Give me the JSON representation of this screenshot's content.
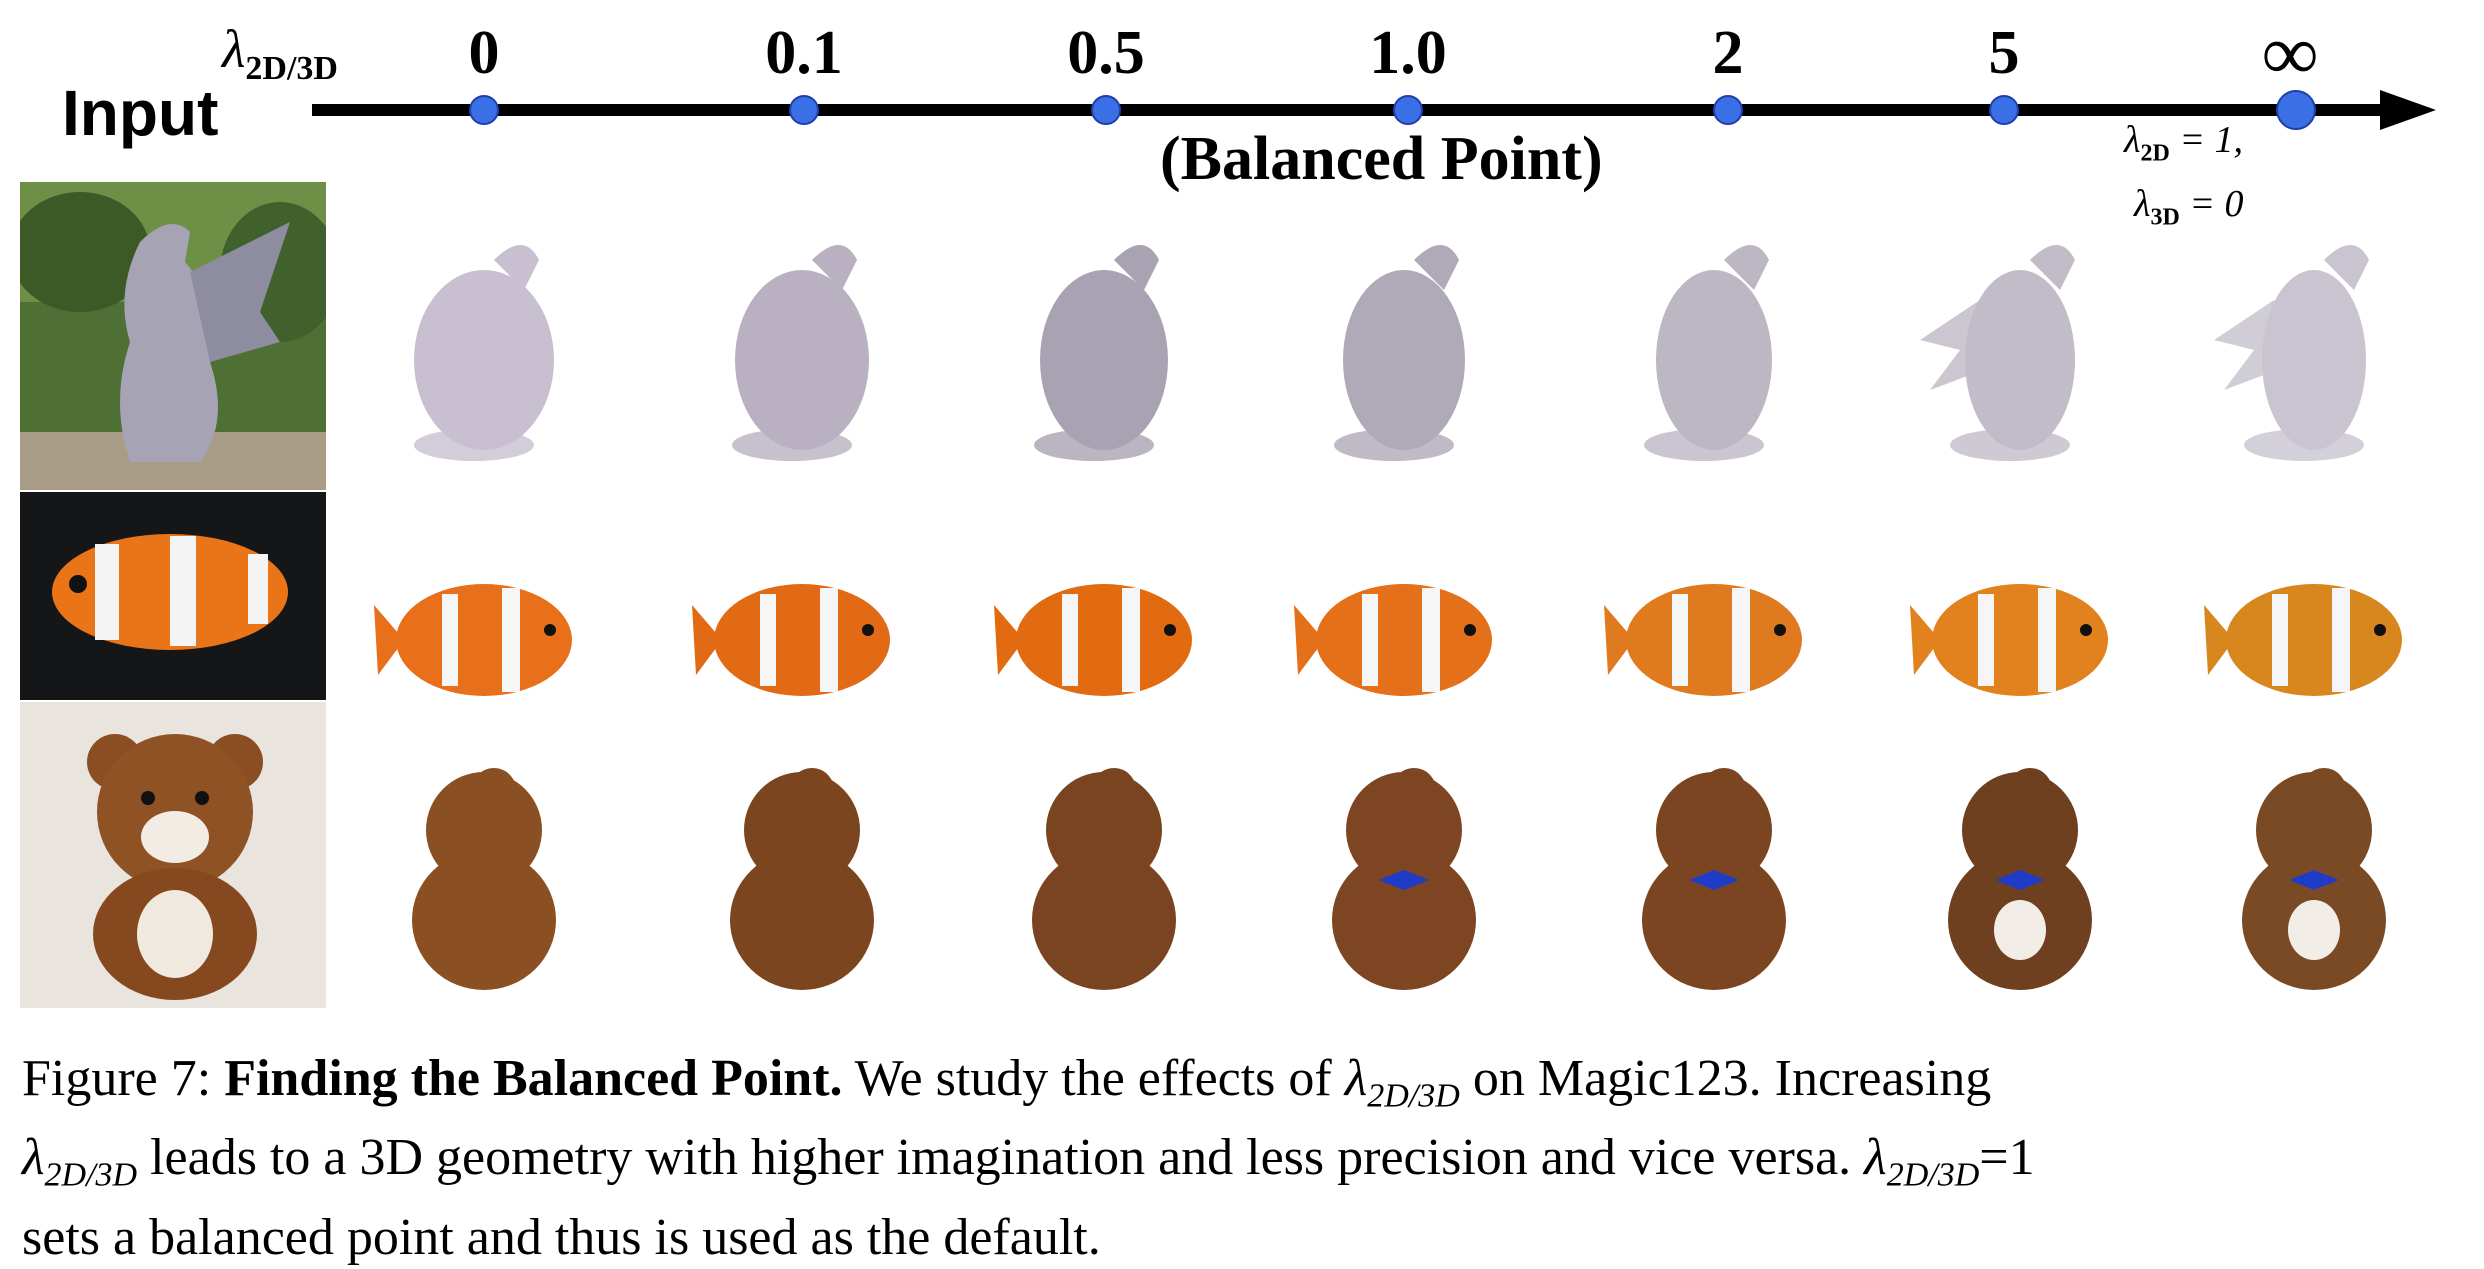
{
  "axis": {
    "input_label": "Input",
    "lambda_symbol": "λ",
    "lambda_subscript": "2D/3D",
    "ticks": [
      "0",
      "0.1",
      "0.5",
      "1.0",
      "2",
      "5",
      "∞"
    ],
    "balanced_label": "(Balanced Point)",
    "infinity_note_line1_lambda": "λ",
    "infinity_note_line1_sub": "2D",
    "infinity_note_line1_value": " = 1,",
    "infinity_note_line2_lambda": "λ",
    "infinity_note_line2_sub": "3D",
    "infinity_note_line2_value": " = 0",
    "line_color": "#000000",
    "marker_color": "#3b6fe6"
  },
  "rows": [
    {
      "subject": "dragon",
      "input_bg": "#5b7a3a",
      "body_colors": [
        "#c8bfd0",
        "#b9b1c2",
        "#a9a2b2",
        "#b0a9b8",
        "#bdb7c4",
        "#c2bcc8",
        "#c9c4cf"
      ]
    },
    {
      "subject": "clownfish",
      "input_bg": "#16181a",
      "body_colors": [
        "#e8701a",
        "#e36a14",
        "#e26b12",
        "#e4701a",
        "#e07a1e",
        "#e2821e",
        "#d8861e"
      ]
    },
    {
      "subject": "teddy-bear",
      "input_bg": "#e6e1da",
      "body_colors": [
        "#8a4f22",
        "#7b4520",
        "#7a4420",
        "#7d4521",
        "#7a4520",
        "#6f4020",
        "#7a4a24"
      ]
    }
  ],
  "caption": {
    "figure_label": "Figure 7:",
    "title": "Finding the Balanced Point.",
    "line1_a": " We study the effects of ",
    "lam": "λ",
    "sub": "2D/3D",
    "line1_b": " on Magic123. Increasing",
    "line2_b": " leads to a 3D geometry with higher imagination and less precision and vice versa. ",
    "line2_c": "=1",
    "line3": "sets a balanced point and thus is used as the default."
  }
}
